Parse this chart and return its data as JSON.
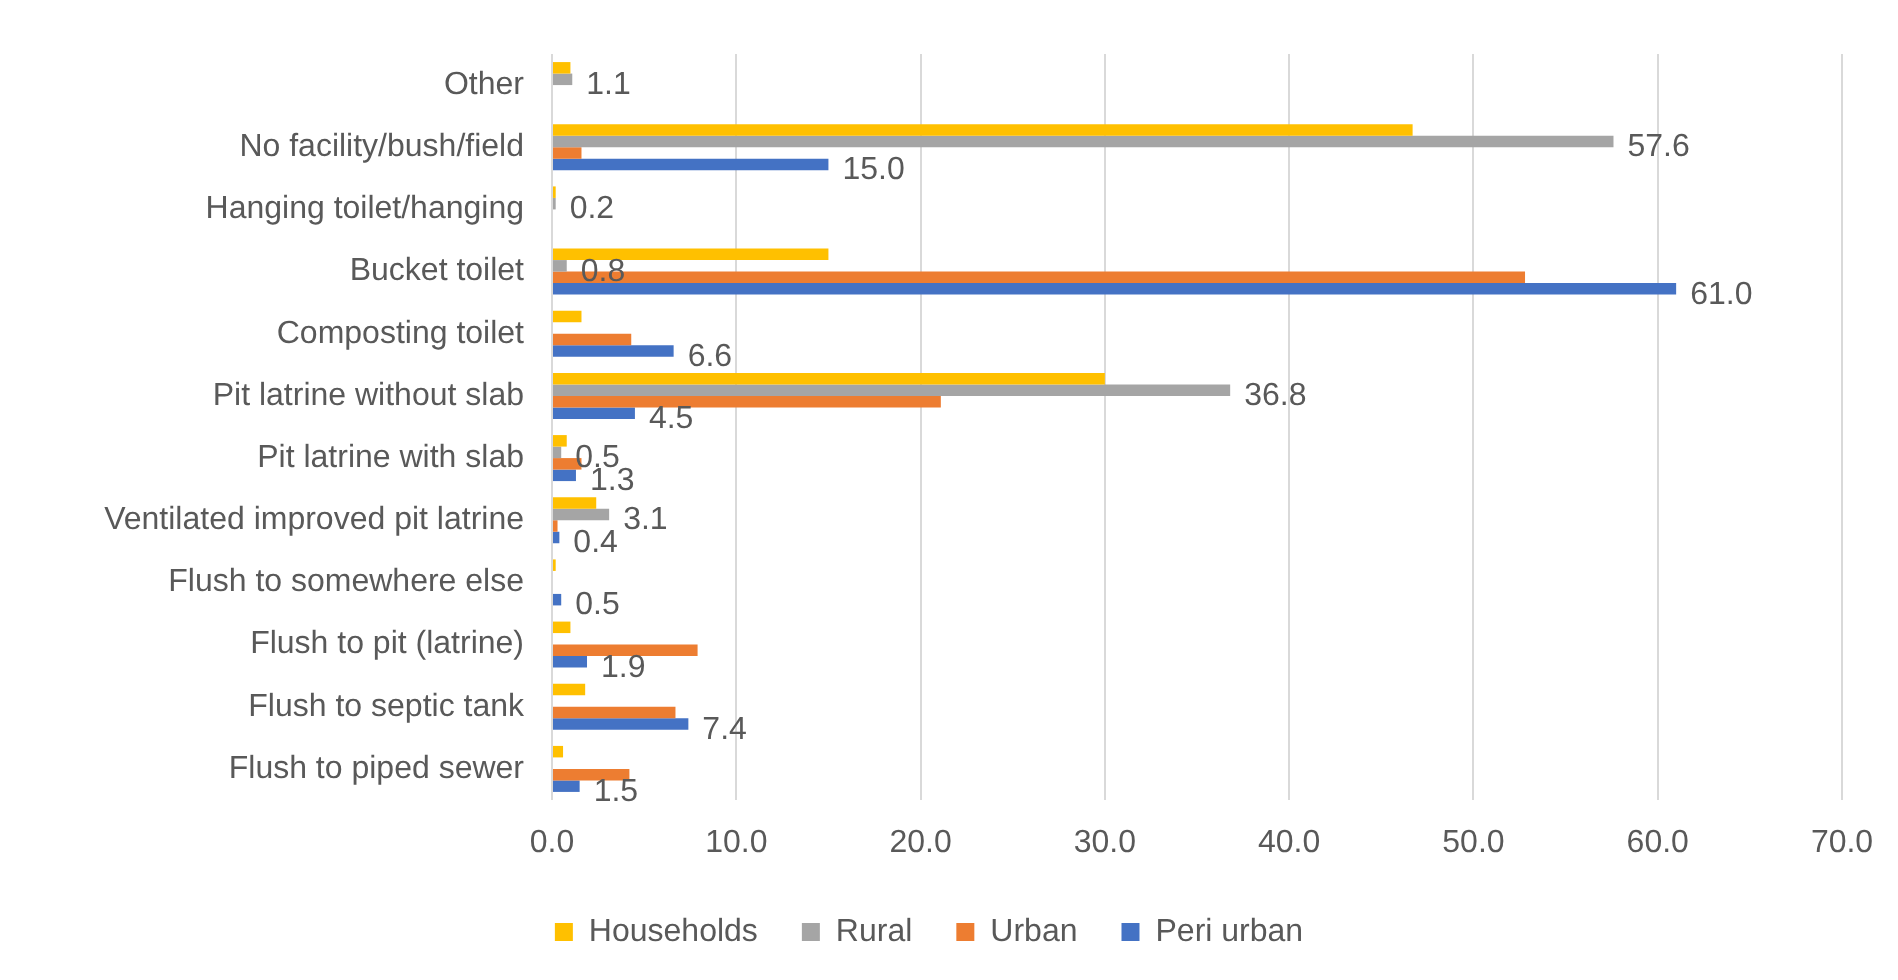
{
  "chart_data": {
    "type": "bar",
    "orientation": "horizontal",
    "categories": [
      "Other",
      "No facility/bush/field",
      "Hanging toilet/hanging",
      "Bucket toilet",
      "Composting toilet",
      "Pit latrine without slab",
      "Pit latrine with slab",
      "Ventilated improved pit latrine",
      "Flush to somewhere else",
      "Flush to pit (latrine)",
      "Flush to septic tank",
      "Flush to piped sewer"
    ],
    "series": [
      {
        "name": "Households",
        "color": "#ffc000",
        "values": [
          1.0,
          46.7,
          0.2,
          15.0,
          1.6,
          30.0,
          0.8,
          2.4,
          0.2,
          1.0,
          1.8,
          0.6
        ]
      },
      {
        "name": "Rural",
        "color": "#a5a5a5",
        "values": [
          1.1,
          57.6,
          0.2,
          0.8,
          null,
          36.8,
          0.5,
          3.1,
          null,
          null,
          null,
          null
        ],
        "value_labels": [
          "1.1",
          "57.6",
          "0.2",
          "0.8",
          null,
          "36.8",
          "0.5",
          "3.1",
          null,
          null,
          null,
          null
        ]
      },
      {
        "name": "Urban",
        "color": "#ed7d31",
        "values": [
          null,
          1.6,
          null,
          52.8,
          4.3,
          21.1,
          1.6,
          0.3,
          null,
          7.9,
          6.7,
          4.2
        ]
      },
      {
        "name": "Peri urban",
        "color": "#4472c4",
        "values": [
          null,
          15.0,
          null,
          61.0,
          6.6,
          4.5,
          1.3,
          0.4,
          0.5,
          1.9,
          7.4,
          1.5
        ],
        "value_labels": [
          null,
          "15.0",
          null,
          "61.0",
          "6.6",
          "4.5",
          "1.3",
          "0.4",
          "0.5",
          "1.9",
          "7.4",
          "1.5"
        ]
      }
    ],
    "xlim": [
      0,
      70
    ],
    "xticks": [
      {
        "value": 0,
        "label": "0.0"
      },
      {
        "value": 10,
        "label": "10.0"
      },
      {
        "value": 20,
        "label": "20.0"
      },
      {
        "value": 30,
        "label": "30.0"
      },
      {
        "value": 40,
        "label": "40.0"
      },
      {
        "value": 50,
        "label": "50.0"
      },
      {
        "value": 60,
        "label": "60.0"
      },
      {
        "value": 70,
        "label": "70.0"
      }
    ],
    "grid": "x",
    "legend": "bottom"
  }
}
